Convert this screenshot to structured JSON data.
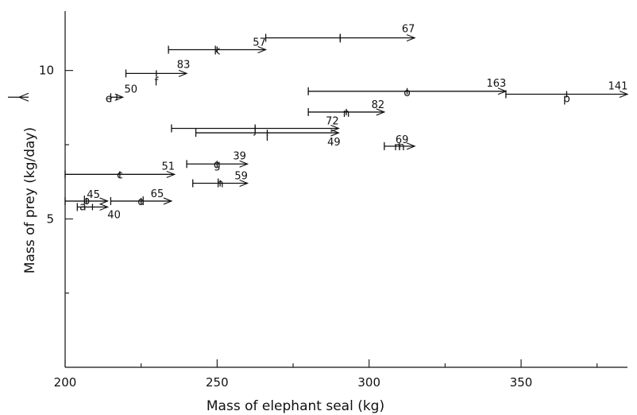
{
  "chart_data": {
    "type": "scatter",
    "xlabel": "Mass of elephant seal (kg)",
    "ylabel": "Mass of prey (kg/day)",
    "xlim": [
      200,
      385
    ],
    "ylim": [
      0,
      12
    ],
    "x_ticks": [
      200,
      250,
      300,
      350
    ],
    "y_ticks": [
      5,
      10
    ],
    "x_tick_labels": [
      "200",
      "250",
      "300",
      "350"
    ],
    "y_tick_labels": [
      "5",
      "10"
    ],
    "grid": false,
    "reference_marker": {
      "y": 9.1
    },
    "series": [
      {
        "label": "a",
        "x_start": 204,
        "x_end": 214,
        "y": 5.4,
        "count": "40"
      },
      {
        "label": "b",
        "x_start": 200,
        "x_end": 214,
        "y": 5.6,
        "count": "45"
      },
      {
        "label": "c",
        "x_start": 200,
        "x_end": 236,
        "y": 6.5,
        "count": "51"
      },
      {
        "label": "d",
        "x_start": 215,
        "x_end": 235,
        "y": 5.6,
        "count": "65"
      },
      {
        "label": "e",
        "x_start": 215,
        "x_end": 219,
        "y": 9.1,
        "count": "50"
      },
      {
        "label": "f",
        "x_start": 220,
        "x_end": 240,
        "y": 9.9,
        "count": "83"
      },
      {
        "label": "g",
        "x_start": 240,
        "x_end": 260,
        "y": 6.85,
        "count": "39"
      },
      {
        "label": "h",
        "x_start": 242,
        "x_end": 260,
        "y": 6.2,
        "count": "59"
      },
      {
        "label": "i",
        "x_start": 243,
        "x_end": 290,
        "y": 7.9,
        "count": "49"
      },
      {
        "label": "j",
        "x_start": 235,
        "x_end": 290,
        "y": 8.05,
        "count": "72"
      },
      {
        "label": "k",
        "x_start": 234,
        "x_end": 266,
        "y": 10.7,
        "count": "57"
      },
      {
        "label": "l",
        "x_start": 266,
        "x_end": 315,
        "y": 11.1,
        "count": "67"
      },
      {
        "label": "m",
        "x_start": 305,
        "x_end": 315,
        "y": 7.45,
        "count": "69"
      },
      {
        "label": "n",
        "x_start": 280,
        "x_end": 305,
        "y": 8.6,
        "count": "82"
      },
      {
        "label": "o",
        "x_start": 280,
        "x_end": 345,
        "y": 9.3,
        "count": "163"
      },
      {
        "label": "p",
        "x_start": 345,
        "x_end": 385,
        "y": 9.2,
        "count": "141"
      }
    ]
  }
}
